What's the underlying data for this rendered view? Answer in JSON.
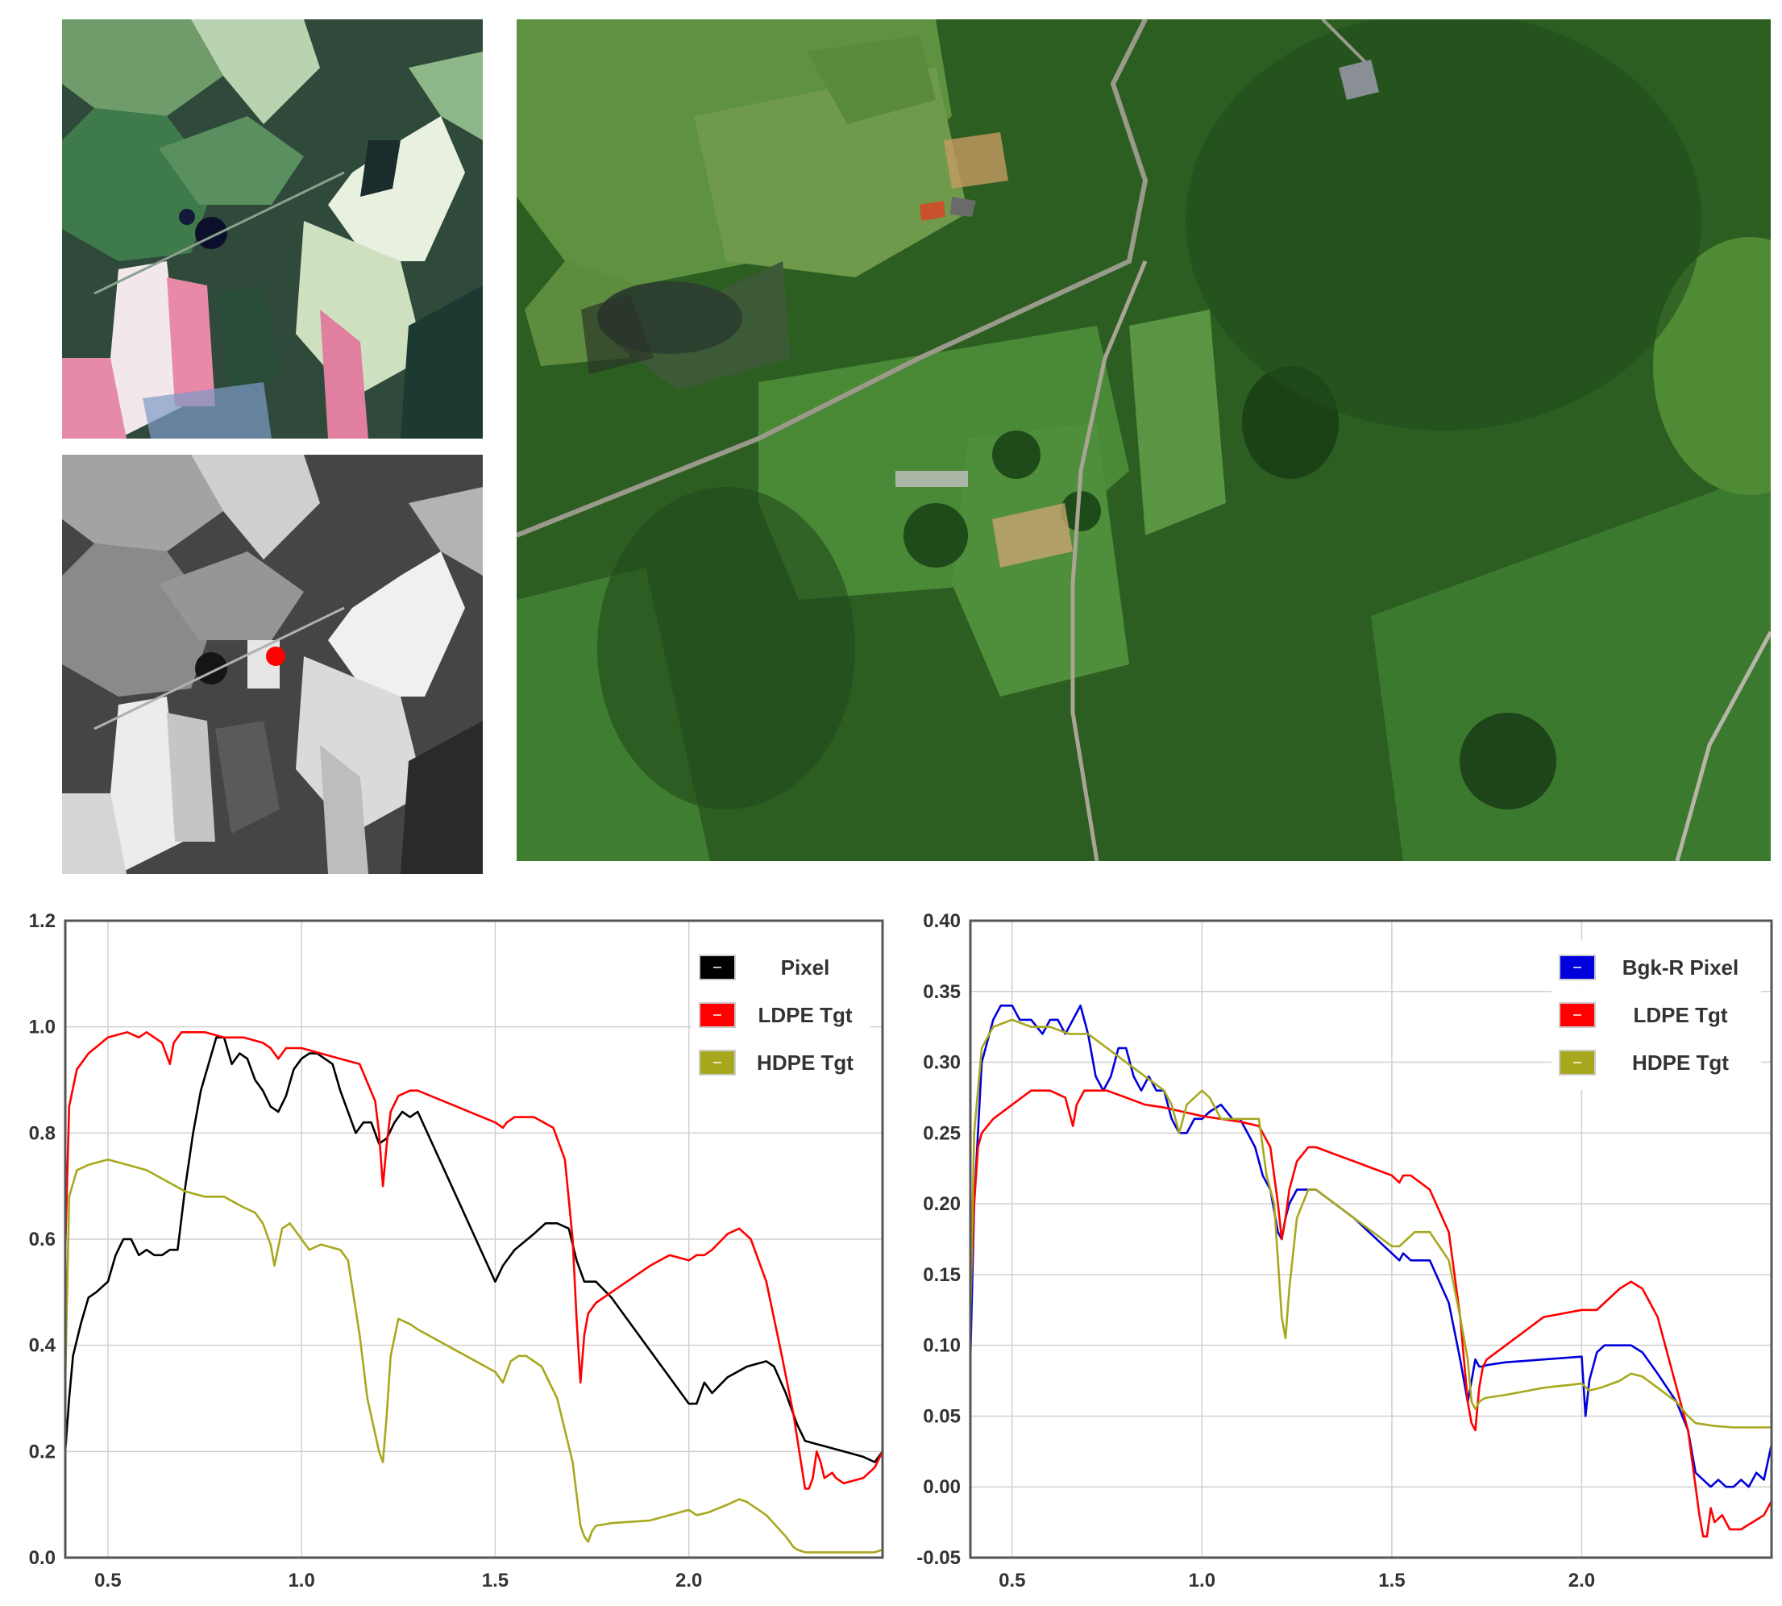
{
  "images": {
    "top_left": {
      "name": "RGB multispectral scene"
    },
    "middle_left": {
      "name": "grayscale band with red target pixel",
      "marker_color": "#ff0000"
    },
    "top_right": {
      "name": "high-resolution aerial photo"
    }
  },
  "chart_data": [
    {
      "type": "line",
      "grid": true,
      "legend_position": "top-right",
      "xlim": [
        0.39,
        2.5
      ],
      "ylim": [
        0.0,
        1.2
      ],
      "xticks": [
        "0.5",
        "1.0",
        "1.5",
        "2.0"
      ],
      "xtick_values": [
        0.5,
        1.0,
        1.5,
        2.0
      ],
      "yticks": [
        "0.0",
        "0.2",
        "0.4",
        "0.6",
        "0.8",
        "1.0",
        "1.2"
      ],
      "ytick_values": [
        0.0,
        0.2,
        0.4,
        0.6,
        0.8,
        1.0,
        1.2
      ],
      "series": [
        {
          "name": "Pixel",
          "color": "#000000",
          "x": [
            0.39,
            0.4,
            0.41,
            0.43,
            0.45,
            0.47,
            0.5,
            0.52,
            0.54,
            0.56,
            0.58,
            0.6,
            0.62,
            0.64,
            0.66,
            0.68,
            0.7,
            0.72,
            0.74,
            0.76,
            0.78,
            0.8,
            0.82,
            0.84,
            0.86,
            0.88,
            0.9,
            0.92,
            0.94,
            0.96,
            0.98,
            1.0,
            1.02,
            1.04,
            1.06,
            1.08,
            1.1,
            1.12,
            1.14,
            1.16,
            1.18,
            1.2,
            1.22,
            1.24,
            1.26,
            1.28,
            1.3,
            1.4,
            1.5,
            1.52,
            1.55,
            1.6,
            1.63,
            1.66,
            1.69,
            1.71,
            1.73,
            1.76,
            1.8,
            1.9,
            2.0,
            2.02,
            2.04,
            2.06,
            2.1,
            2.15,
            2.2,
            2.22,
            2.25,
            2.28,
            2.3,
            2.35,
            2.4,
            2.45,
            2.48,
            2.5
          ],
          "y": [
            0.2,
            0.3,
            0.38,
            0.44,
            0.49,
            0.5,
            0.52,
            0.57,
            0.6,
            0.6,
            0.57,
            0.58,
            0.57,
            0.57,
            0.58,
            0.58,
            0.7,
            0.8,
            0.88,
            0.93,
            0.98,
            0.98,
            0.93,
            0.95,
            0.94,
            0.9,
            0.88,
            0.85,
            0.84,
            0.87,
            0.92,
            0.94,
            0.95,
            0.95,
            0.94,
            0.93,
            0.88,
            0.84,
            0.8,
            0.82,
            0.82,
            0.78,
            0.79,
            0.82,
            0.84,
            0.83,
            0.84,
            0.68,
            0.52,
            0.55,
            0.58,
            0.61,
            0.63,
            0.63,
            0.62,
            0.56,
            0.52,
            0.52,
            0.49,
            0.39,
            0.29,
            0.29,
            0.33,
            0.31,
            0.34,
            0.36,
            0.37,
            0.36,
            0.31,
            0.25,
            0.22,
            0.21,
            0.2,
            0.19,
            0.18,
            0.2
          ]
        },
        {
          "name": "LDPE Tgt",
          "color": "#ff0000",
          "x": [
            0.39,
            0.4,
            0.42,
            0.45,
            0.5,
            0.55,
            0.58,
            0.6,
            0.64,
            0.66,
            0.67,
            0.69,
            0.7,
            0.75,
            0.8,
            0.85,
            0.9,
            0.92,
            0.94,
            0.96,
            1.0,
            1.05,
            1.1,
            1.15,
            1.19,
            1.2,
            1.21,
            1.22,
            1.23,
            1.25,
            1.28,
            1.3,
            1.4,
            1.5,
            1.52,
            1.53,
            1.55,
            1.6,
            1.65,
            1.68,
            1.7,
            1.71,
            1.72,
            1.73,
            1.74,
            1.75,
            1.76,
            1.8,
            1.9,
            1.95,
            2.0,
            2.02,
            2.04,
            2.06,
            2.1,
            2.13,
            2.16,
            2.2,
            2.24,
            2.27,
            2.3,
            2.31,
            2.32,
            2.33,
            2.34,
            2.35,
            2.37,
            2.38,
            2.4,
            2.45,
            2.48,
            2.5
          ],
          "y": [
            0.58,
            0.85,
            0.92,
            0.95,
            0.98,
            0.99,
            0.98,
            0.99,
            0.97,
            0.93,
            0.97,
            0.99,
            0.99,
            0.99,
            0.98,
            0.98,
            0.97,
            0.96,
            0.94,
            0.96,
            0.96,
            0.95,
            0.94,
            0.93,
            0.86,
            0.8,
            0.7,
            0.78,
            0.84,
            0.87,
            0.88,
            0.88,
            0.85,
            0.82,
            0.81,
            0.82,
            0.83,
            0.83,
            0.81,
            0.75,
            0.6,
            0.45,
            0.33,
            0.42,
            0.46,
            0.47,
            0.48,
            0.5,
            0.55,
            0.57,
            0.56,
            0.57,
            0.57,
            0.58,
            0.61,
            0.62,
            0.6,
            0.52,
            0.38,
            0.27,
            0.13,
            0.13,
            0.15,
            0.2,
            0.18,
            0.15,
            0.16,
            0.15,
            0.14,
            0.15,
            0.17,
            0.2
          ]
        },
        {
          "name": "HDPE Tgt",
          "color": "#a8a81e",
          "x": [
            0.39,
            0.4,
            0.42,
            0.45,
            0.5,
            0.55,
            0.6,
            0.65,
            0.7,
            0.75,
            0.8,
            0.85,
            0.88,
            0.9,
            0.92,
            0.93,
            0.95,
            0.97,
            1.0,
            1.02,
            1.05,
            1.1,
            1.12,
            1.15,
            1.17,
            1.2,
            1.21,
            1.22,
            1.23,
            1.25,
            1.28,
            1.3,
            1.4,
            1.5,
            1.52,
            1.54,
            1.56,
            1.58,
            1.62,
            1.66,
            1.7,
            1.72,
            1.73,
            1.74,
            1.75,
            1.76,
            1.8,
            1.9,
            2.0,
            2.02,
            2.05,
            2.1,
            2.13,
            2.15,
            2.2,
            2.25,
            2.27,
            2.28,
            2.3,
            2.35,
            2.4,
            2.45,
            2.48,
            2.5
          ],
          "y": [
            0.33,
            0.68,
            0.73,
            0.74,
            0.75,
            0.74,
            0.73,
            0.71,
            0.69,
            0.68,
            0.68,
            0.66,
            0.65,
            0.63,
            0.59,
            0.55,
            0.62,
            0.63,
            0.6,
            0.58,
            0.59,
            0.58,
            0.56,
            0.42,
            0.3,
            0.2,
            0.18,
            0.27,
            0.38,
            0.45,
            0.44,
            0.43,
            0.39,
            0.35,
            0.33,
            0.37,
            0.38,
            0.38,
            0.36,
            0.3,
            0.18,
            0.06,
            0.04,
            0.03,
            0.05,
            0.06,
            0.065,
            0.07,
            0.09,
            0.08,
            0.085,
            0.1,
            0.11,
            0.105,
            0.08,
            0.04,
            0.02,
            0.015,
            0.01,
            0.01,
            0.01,
            0.01,
            0.01,
            0.015
          ]
        }
      ]
    },
    {
      "type": "line",
      "grid": true,
      "legend_position": "top-right",
      "xlim": [
        0.39,
        2.5
      ],
      "ylim": [
        -0.05,
        0.4
      ],
      "xticks": [
        "0.5",
        "1.0",
        "1.5",
        "2.0"
      ],
      "xtick_values": [
        0.5,
        1.0,
        1.5,
        2.0
      ],
      "yticks": [
        "-0.05",
        "0.00",
        "0.05",
        "0.10",
        "0.15",
        "0.20",
        "0.25",
        "0.30",
        "0.35",
        "0.40"
      ],
      "ytick_values": [
        -0.05,
        0.0,
        0.05,
        0.1,
        0.15,
        0.2,
        0.25,
        0.3,
        0.35,
        0.4
      ],
      "series": [
        {
          "name": "Bgk-R Pixel",
          "color": "#0000dd",
          "x": [
            0.39,
            0.4,
            0.42,
            0.45,
            0.47,
            0.5,
            0.52,
            0.55,
            0.58,
            0.6,
            0.62,
            0.64,
            0.66,
            0.68,
            0.7,
            0.72,
            0.74,
            0.76,
            0.78,
            0.8,
            0.82,
            0.84,
            0.86,
            0.88,
            0.9,
            0.92,
            0.94,
            0.96,
            0.98,
            1.0,
            1.02,
            1.05,
            1.08,
            1.1,
            1.12,
            1.14,
            1.16,
            1.18,
            1.2,
            1.21,
            1.22,
            1.23,
            1.25,
            1.28,
            1.3,
            1.4,
            1.5,
            1.52,
            1.53,
            1.55,
            1.6,
            1.65,
            1.68,
            1.7,
            1.71,
            1.72,
            1.73,
            1.74,
            1.75,
            1.8,
            1.9,
            2.0,
            2.01,
            2.02,
            2.04,
            2.06,
            2.1,
            2.13,
            2.16,
            2.2,
            2.25,
            2.28,
            2.3,
            2.32,
            2.34,
            2.36,
            2.38,
            2.4,
            2.42,
            2.44,
            2.46,
            2.48,
            2.5
          ],
          "y": [
            0.09,
            0.2,
            0.3,
            0.33,
            0.34,
            0.34,
            0.33,
            0.33,
            0.32,
            0.33,
            0.33,
            0.32,
            0.33,
            0.34,
            0.32,
            0.29,
            0.28,
            0.29,
            0.31,
            0.31,
            0.29,
            0.28,
            0.29,
            0.28,
            0.28,
            0.26,
            0.25,
            0.25,
            0.26,
            0.26,
            0.265,
            0.27,
            0.26,
            0.26,
            0.25,
            0.24,
            0.22,
            0.21,
            0.18,
            0.175,
            0.19,
            0.2,
            0.21,
            0.21,
            0.21,
            0.19,
            0.165,
            0.16,
            0.165,
            0.16,
            0.16,
            0.13,
            0.09,
            0.06,
            0.075,
            0.09,
            0.085,
            0.085,
            0.086,
            0.088,
            0.09,
            0.092,
            0.05,
            0.075,
            0.095,
            0.1,
            0.1,
            0.1,
            0.095,
            0.08,
            0.06,
            0.04,
            0.01,
            0.005,
            0.0,
            0.005,
            0.0,
            0.0,
            0.005,
            0.0,
            0.01,
            0.005,
            0.03
          ]
        },
        {
          "name": "LDPE Tgt",
          "color": "#ff0000",
          "x": [
            0.39,
            0.4,
            0.41,
            0.42,
            0.45,
            0.5,
            0.55,
            0.6,
            0.64,
            0.66,
            0.67,
            0.69,
            0.7,
            0.75,
            0.8,
            0.85,
            0.9,
            0.95,
            1.0,
            1.05,
            1.1,
            1.15,
            1.18,
            1.2,
            1.21,
            1.22,
            1.23,
            1.25,
            1.28,
            1.3,
            1.4,
            1.5,
            1.52,
            1.53,
            1.55,
            1.6,
            1.65,
            1.68,
            1.7,
            1.71,
            1.72,
            1.73,
            1.74,
            1.75,
            1.8,
            1.9,
            2.0,
            2.02,
            2.04,
            2.06,
            2.1,
            2.13,
            2.16,
            2.2,
            2.24,
            2.28,
            2.3,
            2.31,
            2.32,
            2.33,
            2.34,
            2.35,
            2.37,
            2.39,
            2.42,
            2.45,
            2.48,
            2.5
          ],
          "y": [
            0.13,
            0.2,
            0.24,
            0.25,
            0.26,
            0.27,
            0.28,
            0.28,
            0.275,
            0.255,
            0.27,
            0.28,
            0.28,
            0.28,
            0.275,
            0.27,
            0.268,
            0.265,
            0.262,
            0.26,
            0.258,
            0.255,
            0.24,
            0.2,
            0.175,
            0.19,
            0.21,
            0.23,
            0.24,
            0.24,
            0.23,
            0.22,
            0.215,
            0.22,
            0.22,
            0.21,
            0.18,
            0.12,
            0.06,
            0.045,
            0.04,
            0.07,
            0.085,
            0.09,
            0.1,
            0.12,
            0.125,
            0.125,
            0.125,
            0.13,
            0.14,
            0.145,
            0.14,
            0.12,
            0.08,
            0.04,
            0.0,
            -0.02,
            -0.035,
            -0.035,
            -0.015,
            -0.025,
            -0.02,
            -0.03,
            -0.03,
            -0.025,
            -0.02,
            -0.01
          ]
        },
        {
          "name": "HDPE Tgt",
          "color": "#a8a81e",
          "x": [
            0.39,
            0.4,
            0.42,
            0.45,
            0.5,
            0.55,
            0.6,
            0.65,
            0.7,
            0.75,
            0.8,
            0.85,
            0.9,
            0.92,
            0.94,
            0.96,
            1.0,
            1.02,
            1.05,
            1.1,
            1.15,
            1.17,
            1.19,
            1.2,
            1.21,
            1.22,
            1.23,
            1.25,
            1.28,
            1.3,
            1.4,
            1.5,
            1.52,
            1.54,
            1.56,
            1.6,
            1.65,
            1.68,
            1.7,
            1.71,
            1.72,
            1.73,
            1.74,
            1.75,
            1.8,
            1.9,
            2.0,
            2.02,
            2.05,
            2.1,
            2.13,
            2.16,
            2.2,
            2.25,
            2.28,
            2.3,
            2.35,
            2.4,
            2.45,
            2.5
          ],
          "y": [
            0.12,
            0.25,
            0.31,
            0.325,
            0.33,
            0.325,
            0.325,
            0.32,
            0.32,
            0.31,
            0.3,
            0.29,
            0.28,
            0.27,
            0.25,
            0.27,
            0.28,
            0.275,
            0.26,
            0.26,
            0.26,
            0.22,
            0.2,
            0.16,
            0.12,
            0.105,
            0.14,
            0.19,
            0.21,
            0.21,
            0.19,
            0.17,
            0.17,
            0.175,
            0.18,
            0.18,
            0.16,
            0.12,
            0.09,
            0.06,
            0.055,
            0.06,
            0.062,
            0.063,
            0.065,
            0.07,
            0.073,
            0.068,
            0.07,
            0.075,
            0.08,
            0.078,
            0.07,
            0.06,
            0.05,
            0.045,
            0.043,
            0.042,
            0.042,
            0.042
          ]
        }
      ]
    }
  ]
}
